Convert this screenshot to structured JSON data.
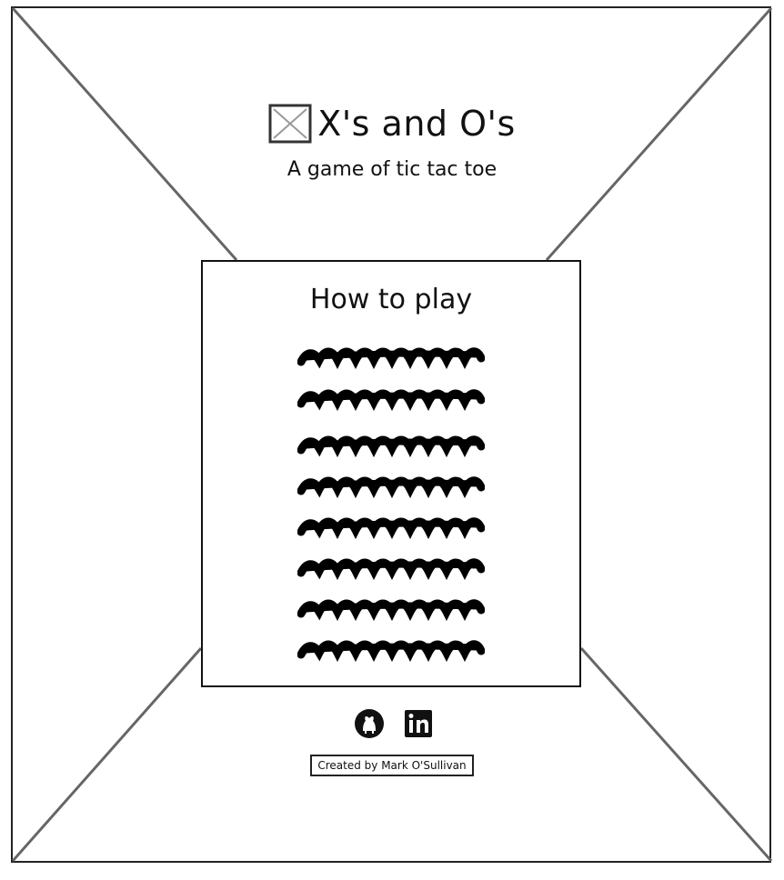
{
  "header": {
    "logo_icon": "image-placeholder-icon",
    "title": "X's and O's",
    "subtitle": "A game of tic tac toe"
  },
  "panel": {
    "title": "How to play",
    "text_lines": [
      "scribble",
      "scribble",
      "scribble",
      "scribble",
      "scribble",
      "scribble",
      "scribble",
      "scribble"
    ]
  },
  "footer": {
    "icons": [
      "github-icon",
      "linkedin-icon"
    ],
    "credit": "Created by Mark O'Sullivan"
  }
}
